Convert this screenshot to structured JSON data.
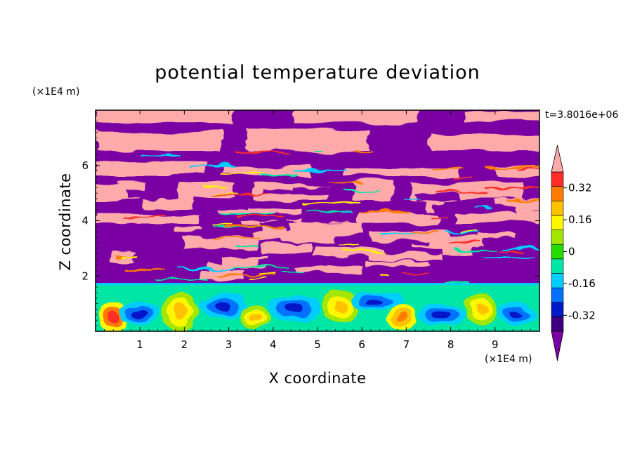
{
  "chart_data": {
    "type": "heatmap",
    "title": "potential temperature deviation",
    "xlabel": "X coordinate",
    "ylabel": "Z coordinate",
    "x_unit": "(×1E4 m)",
    "y_unit": "(×1E4 m)",
    "time_label": "t=3.8016e+06",
    "xlim": [
      0,
      10
    ],
    "ylim": [
      0,
      8
    ],
    "x_ticks": [
      "1",
      "2",
      "3",
      "4",
      "5",
      "6",
      "7",
      "8",
      "9"
    ],
    "y_ticks": [
      "2",
      "4",
      "6"
    ],
    "colorbar": {
      "levels": [
        -0.48,
        -0.4,
        -0.32,
        -0.24,
        -0.16,
        -0.08,
        0,
        0.08,
        0.16,
        0.24,
        0.32,
        0.4,
        0.48
      ],
      "tick_labels": [
        "0.32",
        "0.16",
        "0",
        "-0.16",
        "-0.32"
      ],
      "colors": [
        "#7b00a3",
        "#3c007e",
        "#0019c8",
        "#0072ff",
        "#00cdff",
        "#00e7a5",
        "#25dc00",
        "#a3e600",
        "#fff600",
        "#ffc100",
        "#ff7c00",
        "#ff2d27",
        "#ffaaaa"
      ],
      "under_color": "#7b00a3",
      "over_color": "#ffaaaa",
      "extend": "both"
    },
    "regions": [
      {
        "z_range": [
          1.7,
          8
        ],
        "description": "layered bands alternating between saturated over/under values"
      },
      {
        "z_range": [
          0,
          1.7
        ],
        "description": "convective eddies with values between -0.40 and 0.40"
      }
    ]
  },
  "colors": {
    "background": "#ffffff",
    "frame": "#000000"
  }
}
